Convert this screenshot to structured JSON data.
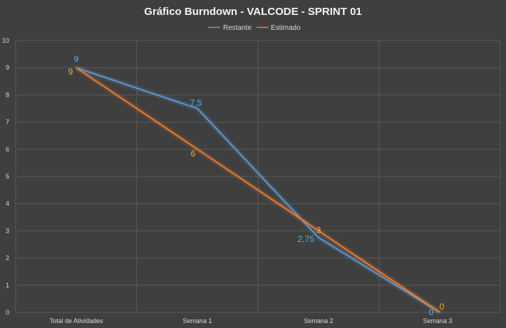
{
  "chart_data": {
    "type": "line",
    "title": "Gráfico Burndown - VALCODE - SPRINT 01",
    "xlabel": "",
    "ylabel": "",
    "categories": [
      "Total de Atividades",
      "Semana 1",
      "Semana 2",
      "Semana 3"
    ],
    "ylim": [
      0,
      10
    ],
    "yticks": [
      0,
      1,
      2,
      3,
      4,
      5,
      6,
      7,
      8,
      9,
      10
    ],
    "grid": true,
    "legend_position": "top-center",
    "series": [
      {
        "name": "Restante",
        "values": [
          9,
          7.5,
          2.75,
          0
        ],
        "labels": [
          "9",
          "7,5",
          "2,75",
          "0"
        ],
        "color": "#5b9bd5",
        "label_color": "#4fb3e8"
      },
      {
        "name": "Estimado",
        "values": [
          9,
          6,
          3,
          0
        ],
        "labels": [
          "9",
          "6",
          "3",
          "0"
        ],
        "color": "#ed7d31",
        "label_color": "#f2b61f"
      }
    ]
  }
}
